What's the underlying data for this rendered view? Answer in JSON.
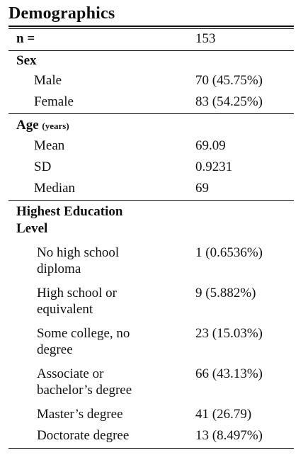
{
  "title": "Demographics",
  "n": {
    "label": "n =",
    "value": "153"
  },
  "sex": {
    "heading": "Sex",
    "rows": [
      {
        "label": "Male",
        "value": "70 (45.75%)"
      },
      {
        "label": "Female",
        "value": "83 (54.25%)"
      }
    ]
  },
  "age": {
    "heading": "Age",
    "unit": "(years)",
    "rows": [
      {
        "label": "Mean",
        "value": "69.09"
      },
      {
        "label": "SD",
        "value": "0.9231"
      },
      {
        "label": "Median",
        "value": "69"
      }
    ]
  },
  "education": {
    "heading_line1": "Highest Education",
    "heading_line2": "Level",
    "rows": [
      {
        "label_line1": "No high school",
        "label_line2": "diploma",
        "value": "1 (0.6536%)"
      },
      {
        "label_line1": "High school or",
        "label_line2": "equivalent",
        "value": "9 (5.882%)"
      },
      {
        "label_line1": "Some college, no",
        "label_line2": "degree",
        "value": "23 (15.03%)"
      },
      {
        "label_line1": "Associate or",
        "label_line2": "bachelor’s degree",
        "value": "66 (43.13%)"
      },
      {
        "label_line1": "Master’s degree",
        "value": "41 (26.79)"
      },
      {
        "label_line1": "Doctorate degree",
        "value": "13 (8.497%)"
      }
    ]
  }
}
